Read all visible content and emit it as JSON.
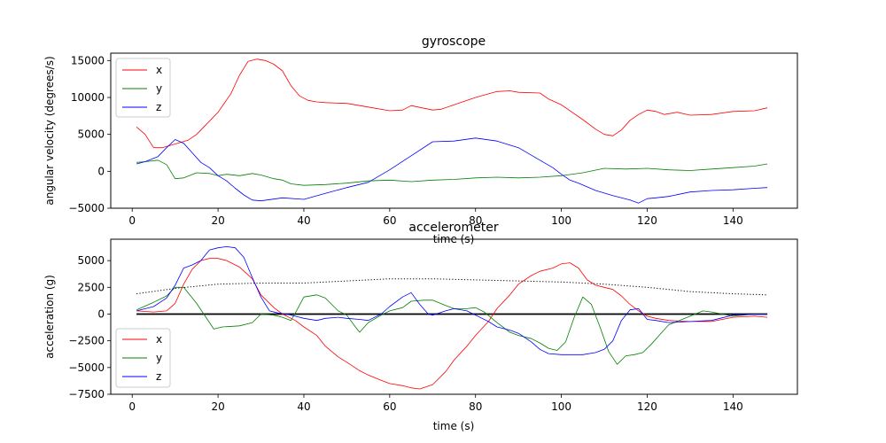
{
  "chart_data": [
    {
      "type": "line",
      "title": "gyroscope",
      "xlabel": "time (s)",
      "ylabel": "angular velocity (degrees/s)",
      "xlim": [
        -5,
        155
      ],
      "ylim": [
        -5000,
        16000
      ],
      "xticks": [
        0,
        20,
        40,
        60,
        80,
        100,
        120,
        140
      ],
      "yticks": [
        -5000,
        0,
        5000,
        10000,
        15000
      ],
      "legend_position": "top-left",
      "grid": false,
      "series": [
        {
          "name": "x",
          "color": "#ff0000",
          "x": [
            1,
            3,
            5,
            7,
            10,
            13,
            15,
            17,
            20,
            23,
            25,
            27,
            29,
            31,
            33,
            35,
            37,
            39,
            41,
            43,
            45,
            50,
            55,
            60,
            63,
            65,
            70,
            72,
            75,
            80,
            85,
            88,
            90,
            95,
            97,
            100,
            105,
            108,
            110,
            112,
            114,
            116,
            118,
            120,
            122,
            124,
            127,
            130,
            135,
            140,
            145,
            148
          ],
          "y": [
            6000,
            5000,
            3200,
            3200,
            3700,
            4200,
            5000,
            6200,
            8000,
            10500,
            13000,
            14900,
            15200,
            15000,
            14500,
            13600,
            11600,
            10200,
            9600,
            9400,
            9300,
            9200,
            8700,
            8200,
            8300,
            8900,
            8300,
            8400,
            9000,
            10000,
            10800,
            10900,
            10700,
            10600,
            9800,
            9000,
            7000,
            5700,
            5000,
            4800,
            5600,
            6900,
            7700,
            8300,
            8100,
            7700,
            8000,
            7600,
            7700,
            8100,
            8200,
            8600
          ]
        },
        {
          "name": "y",
          "color": "#008000",
          "x": [
            1,
            3,
            6,
            8,
            10,
            12,
            15,
            18,
            20,
            22,
            25,
            28,
            30,
            33,
            35,
            37,
            40,
            45,
            50,
            55,
            60,
            65,
            70,
            75,
            80,
            85,
            90,
            95,
            100,
            105,
            110,
            115,
            120,
            125,
            130,
            135,
            140,
            145,
            148
          ],
          "y": [
            1200,
            1300,
            1500,
            900,
            -1000,
            -900,
            -200,
            -300,
            -600,
            -400,
            -600,
            -300,
            -500,
            -1000,
            -1200,
            -1700,
            -1900,
            -1800,
            -1600,
            -1300,
            -1200,
            -1400,
            -1200,
            -1100,
            -900,
            -800,
            -900,
            -800,
            -600,
            -200,
            400,
            300,
            400,
            200,
            100,
            300,
            500,
            700,
            1000
          ]
        },
        {
          "name": "z",
          "color": "#0000ff",
          "x": [
            1,
            3,
            6,
            8,
            10,
            12,
            14,
            16,
            18,
            20,
            22,
            24,
            26,
            28,
            30,
            35,
            40,
            45,
            50,
            55,
            60,
            65,
            70,
            75,
            80,
            85,
            90,
            95,
            98,
            100,
            102,
            104,
            108,
            112,
            116,
            118,
            120,
            122,
            125,
            130,
            135,
            140,
            145,
            148
          ],
          "y": [
            1000,
            1300,
            2000,
            3200,
            4300,
            3800,
            2500,
            1200,
            500,
            -600,
            -1300,
            -2300,
            -3200,
            -3900,
            -4000,
            -3600,
            -3800,
            -3000,
            -2200,
            -1500,
            200,
            2100,
            4000,
            4100,
            4500,
            4100,
            3200,
            1500,
            500,
            -400,
            -1200,
            -1600,
            -2600,
            -3300,
            -3900,
            -4300,
            -3700,
            -3600,
            -3400,
            -2800,
            -2600,
            -2500,
            -2300,
            -2200
          ]
        }
      ]
    },
    {
      "type": "line",
      "title": "accelerometer",
      "xlabel": "time (s)",
      "ylabel": "acceleration (g)",
      "xlim": [
        -5,
        155
      ],
      "ylim": [
        -7500,
        7000
      ],
      "xticks": [
        0,
        20,
        40,
        60,
        80,
        100,
        120,
        140
      ],
      "yticks": [
        -7500,
        -5000,
        -2500,
        0,
        2500,
        5000
      ],
      "legend_position": "bottom-left",
      "grid": false,
      "reference_lines": [
        {
          "style": "solid",
          "color": "#000000",
          "x": [
            1,
            148
          ],
          "y": [
            0,
            0
          ]
        },
        {
          "style": "dotted",
          "color": "#000000",
          "x": [
            1,
            10,
            20,
            30,
            40,
            50,
            60,
            70,
            80,
            90,
            100,
            110,
            120,
            130,
            140,
            148
          ],
          "y": [
            1900,
            2400,
            2800,
            2900,
            2900,
            3100,
            3300,
            3300,
            3200,
            3100,
            3000,
            2800,
            2500,
            2100,
            1900,
            1800
          ]
        }
      ],
      "series": [
        {
          "name": "x",
          "color": "#ff0000",
          "x": [
            1,
            5,
            8,
            10,
            12,
            14,
            16,
            18,
            20,
            22,
            25,
            28,
            30,
            33,
            35,
            38,
            40,
            43,
            45,
            48,
            50,
            53,
            55,
            58,
            60,
            63,
            65,
            67,
            70,
            73,
            75,
            78,
            80,
            83,
            85,
            88,
            90,
            93,
            95,
            98,
            100,
            102,
            104,
            106,
            108,
            110,
            112,
            114,
            116,
            118,
            120,
            122,
            125,
            130,
            135,
            140,
            145,
            148
          ],
          "y": [
            300,
            200,
            300,
            1000,
            2800,
            4200,
            5000,
            5200,
            5200,
            5000,
            4400,
            3300,
            1800,
            600,
            0,
            -600,
            -1200,
            -2000,
            -3000,
            -4000,
            -4500,
            -5300,
            -5700,
            -6200,
            -6500,
            -6700,
            -6900,
            -7000,
            -6600,
            -5400,
            -4300,
            -3000,
            -2000,
            -700,
            500,
            1800,
            2800,
            3600,
            4000,
            4300,
            4700,
            4800,
            4300,
            3200,
            2700,
            2500,
            2300,
            1700,
            900,
            300,
            -200,
            -400,
            -600,
            -700,
            -700,
            -300,
            -200,
            -300
          ]
        },
        {
          "name": "y",
          "color": "#008000",
          "x": [
            1,
            5,
            8,
            10,
            12,
            15,
            17,
            19,
            21,
            25,
            28,
            30,
            33,
            35,
            37,
            38,
            40,
            43,
            45,
            48,
            50,
            52,
            53,
            55,
            58,
            60,
            63,
            65,
            68,
            70,
            73,
            75,
            78,
            80,
            82,
            85,
            88,
            90,
            93,
            95,
            97,
            99,
            101,
            103,
            105,
            107,
            109,
            111,
            113,
            115,
            117,
            119,
            121,
            123,
            125,
            130,
            133,
            135,
            140,
            145,
            148
          ],
          "y": [
            400,
            1100,
            1700,
            2500,
            2500,
            1000,
            -200,
            -1400,
            -1200,
            -1100,
            -800,
            0,
            -100,
            -300,
            -600,
            100,
            1600,
            1800,
            1500,
            300,
            -100,
            -1200,
            -1700,
            -800,
            -100,
            300,
            600,
            1200,
            1300,
            1300,
            800,
            500,
            500,
            600,
            200,
            -800,
            -1700,
            -2000,
            -2300,
            -2700,
            -3200,
            -3400,
            -2600,
            -300,
            1600,
            900,
            -1200,
            -3500,
            -4700,
            -3900,
            -3800,
            -3600,
            -2800,
            -1900,
            -1000,
            -200,
            300,
            200,
            -200,
            0,
            0
          ]
        },
        {
          "name": "z",
          "color": "#0000ff",
          "x": [
            1,
            5,
            8,
            10,
            12,
            14,
            16,
            18,
            20,
            22,
            24,
            26,
            28,
            30,
            32,
            34,
            36,
            38,
            40,
            43,
            45,
            48,
            50,
            53,
            55,
            58,
            60,
            63,
            65,
            67,
            69,
            70,
            73,
            75,
            78,
            80,
            83,
            85,
            88,
            90,
            93,
            95,
            97,
            100,
            103,
            105,
            108,
            110,
            112,
            114,
            116,
            118,
            120,
            122,
            125,
            130,
            135,
            140,
            145,
            148
          ],
          "y": [
            300,
            700,
            1500,
            2700,
            4300,
            4600,
            5000,
            6000,
            6200,
            6300,
            6200,
            5300,
            3400,
            1600,
            300,
            100,
            0,
            -200,
            -400,
            -600,
            -400,
            -300,
            -400,
            -500,
            -600,
            0,
            700,
            1600,
            2000,
            900,
            0,
            -100,
            300,
            500,
            300,
            -100,
            -700,
            -1200,
            -1500,
            -1800,
            -2600,
            -3300,
            -3700,
            -3800,
            -3800,
            -3800,
            -3600,
            -3300,
            -2500,
            -600,
            400,
            500,
            -500,
            -600,
            -800,
            -700,
            -600,
            -100,
            0,
            0
          ]
        }
      ]
    }
  ]
}
